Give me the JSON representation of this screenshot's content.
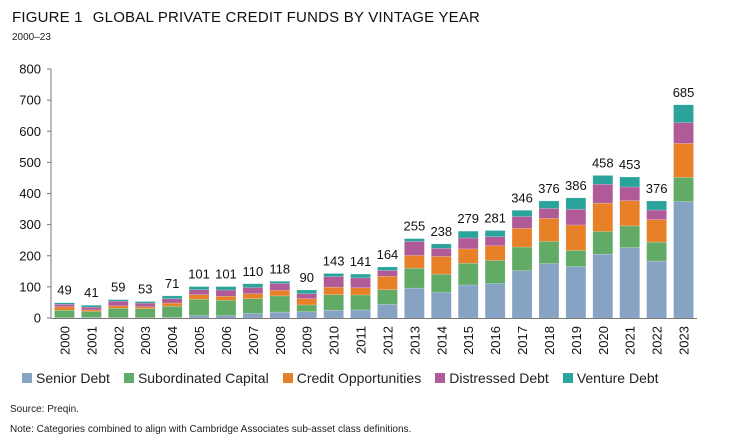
{
  "figure_label": "FIGURE 1",
  "title_text": "GLOBAL PRIVATE CREDIT FUNDS BY VINTAGE YEAR",
  "subtitle": "2000–23",
  "source": "Source: Preqin.",
  "note": "Note: Categories combined to align with Cambridge Associates sub-asset class definitions.",
  "chart_data": {
    "type": "bar",
    "stacked": true,
    "title": "GLOBAL PRIVATE CREDIT FUNDS BY VINTAGE YEAR",
    "subtitle": "2000–23",
    "xlabel": "",
    "ylabel": "",
    "ylim": [
      0,
      800
    ],
    "yticks": [
      0,
      100,
      200,
      300,
      400,
      500,
      600,
      700,
      800
    ],
    "grid": false,
    "legend_position": "bottom",
    "categories": [
      "2000",
      "2001",
      "2002",
      "2003",
      "2004",
      "2005",
      "2006",
      "2007",
      "2008",
      "2009",
      "2010",
      "2011",
      "2012",
      "2013",
      "2014",
      "2015",
      "2016",
      "2017",
      "2018",
      "2019",
      "2020",
      "2021",
      "2022",
      "2023"
    ],
    "totals": [
      49,
      41,
      59,
      53,
      71,
      101,
      101,
      110,
      118,
      90,
      143,
      141,
      164,
      255,
      238,
      279,
      281,
      346,
      376,
      386,
      458,
      453,
      376,
      685
    ],
    "series": [
      {
        "name": "Senior Debt",
        "color": "#86a3c4",
        "values": [
          1,
          2,
          1,
          1,
          2,
          8,
          8,
          15,
          19,
          20,
          25,
          26,
          44,
          96,
          82,
          106,
          111,
          152,
          175,
          165,
          205,
          226,
          183,
          374
        ]
      },
      {
        "name": "Subordinated Capital",
        "color": "#62ab66",
        "values": [
          24,
          19,
          30,
          29,
          36,
          52,
          49,
          47,
          52,
          22,
          50,
          48,
          47,
          64,
          59,
          70,
          74,
          76,
          71,
          52,
          73,
          70,
          61,
          78
        ]
      },
      {
        "name": "Credit Opportunities",
        "color": "#e88028",
        "values": [
          11,
          5,
          8,
          6,
          10,
          15,
          13,
          16,
          18,
          20,
          24,
          23,
          43,
          41,
          57,
          46,
          47,
          60,
          74,
          82,
          91,
          81,
          72,
          109
        ]
      },
      {
        "name": "Distressed Debt",
        "color": "#b05a98",
        "values": [
          8,
          9,
          15,
          12,
          14,
          16,
          20,
          20,
          22,
          16,
          34,
          32,
          19,
          45,
          26,
          35,
          29,
          38,
          32,
          50,
          61,
          44,
          31,
          67
        ]
      },
      {
        "name": "Venture Debt",
        "color": "#2aa39a",
        "values": [
          5,
          6,
          5,
          5,
          9,
          10,
          11,
          12,
          7,
          12,
          10,
          12,
          11,
          9,
          14,
          22,
          20,
          20,
          24,
          37,
          28,
          32,
          29,
          57
        ]
      }
    ]
  }
}
